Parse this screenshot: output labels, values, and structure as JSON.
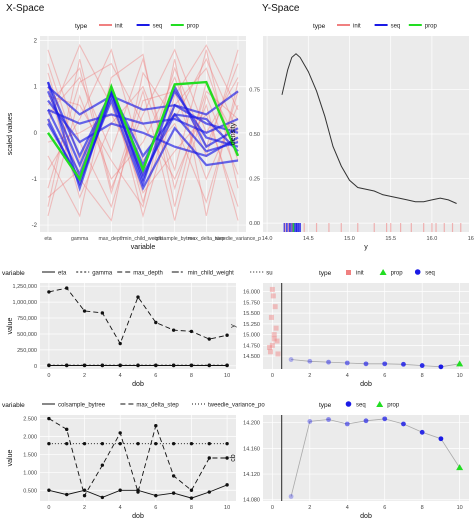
{
  "panel_titles": {
    "x_space": "X-Space",
    "y_space": "Y-Space"
  },
  "colors": {
    "panel_bg": "#ebebeb",
    "grid": "#ffffff",
    "init": "#f08080",
    "seq": "#1a1ae6",
    "prop": "#22dd22"
  },
  "chart_data": [
    {
      "id": "xspace",
      "type": "line",
      "legend_placement": "top",
      "legend": {
        "title": "type",
        "entries": [
          {
            "name": "init",
            "color": "#f08080"
          },
          {
            "name": "seq",
            "color": "#1a1ae6"
          },
          {
            "name": "prop",
            "color": "#22dd22"
          }
        ]
      },
      "xlabel": "variable",
      "ylabel": "scaled values",
      "categories": [
        "eta",
        "gamma",
        "max_depth",
        "min_child_weight",
        "colsample_bytree",
        "max_delta_step",
        "tweedie_variance_p"
      ],
      "tick_labels": [
        "eta",
        "gamma",
        "max_depth",
        "min_child_weight",
        "colsample_bytree",
        "max_delta_step",
        "tweedie_variance_p"
      ],
      "ylim": [
        -2.15,
        2.1
      ],
      "yticks": [
        -2,
        -1,
        0,
        1,
        2
      ],
      "series": [
        {
          "type": "init",
          "values": [
            -1.6,
            1.6,
            -1.2,
            0.4,
            1.8,
            0.0,
            1.2
          ]
        },
        {
          "type": "init",
          "values": [
            1.5,
            -0.6,
            0.9,
            -1.8,
            0.6,
            1.4,
            -0.6
          ]
        },
        {
          "type": "init",
          "values": [
            0.4,
            1.2,
            -0.4,
            1.6,
            -1.2,
            0.9,
            0.3
          ]
        },
        {
          "type": "init",
          "values": [
            -0.8,
            0.3,
            1.8,
            -0.6,
            0.2,
            -1.5,
            0.9
          ]
        },
        {
          "type": "init",
          "values": [
            1.0,
            -1.4,
            0.2,
            1.0,
            -0.8,
            1.8,
            -1.2
          ]
        },
        {
          "type": "init",
          "values": [
            -1.8,
            0.8,
            -1.0,
            -0.2,
            1.2,
            -0.5,
            1.8
          ]
        },
        {
          "type": "init",
          "values": [
            0.2,
            1.9,
            0.6,
            -1.3,
            -0.4,
            0.4,
            -1.6
          ]
        },
        {
          "type": "init",
          "values": [
            1.8,
            -0.2,
            -1.6,
            0.7,
            0.9,
            -1.0,
            0.6
          ]
        },
        {
          "type": "init",
          "values": [
            -0.5,
            -1.8,
            1.2,
            1.7,
            -1.6,
            1.1,
            -0.2
          ]
        },
        {
          "type": "init",
          "values": [
            0.8,
            0.6,
            -0.6,
            -1.6,
            1.6,
            -1.8,
            1.1
          ]
        },
        {
          "type": "init",
          "values": [
            -1.2,
            1.1,
            1.5,
            0.2,
            -1.0,
            0.6,
            -1.9
          ]
        },
        {
          "type": "init",
          "values": [
            1.3,
            -1.0,
            -1.9,
            1.3,
            0.3,
            1.6,
            0.0
          ]
        },
        {
          "type": "init",
          "values": [
            -0.2,
            0.0,
            0.4,
            -0.9,
            1.4,
            -0.3,
            1.5
          ]
        },
        {
          "type": "init",
          "values": [
            0.6,
            1.4,
            -1.3,
            0.9,
            -1.9,
            0.8,
            -0.9
          ]
        },
        {
          "type": "init",
          "values": [
            -1.4,
            -0.8,
            1.0,
            -1.5,
            0.8,
            1.9,
            0.5
          ]
        },
        {
          "type": "seq",
          "values": [
            1.1,
            -1.2,
            0.9,
            -1.1,
            1.0,
            -0.3,
            0.1
          ]
        },
        {
          "type": "seq",
          "values": [
            0.3,
            -1.1,
            0.8,
            -0.9,
            0.4,
            0.3,
            -0.4
          ]
        },
        {
          "type": "seq",
          "values": [
            0.5,
            -0.9,
            0.9,
            -1.0,
            0.6,
            0.2,
            0.0
          ]
        },
        {
          "type": "seq",
          "values": [
            1.0,
            0.4,
            0.8,
            0.5,
            0.6,
            0.4,
            0.9
          ]
        },
        {
          "type": "seq",
          "values": [
            0.7,
            -0.2,
            0.2,
            0.0,
            -0.3,
            -0.5,
            -0.1
          ]
        },
        {
          "type": "seq",
          "values": [
            0.5,
            0.2,
            0.4,
            0.2,
            0.3,
            0.0,
            0.3
          ]
        },
        {
          "type": "seq",
          "values": [
            0.2,
            -1.0,
            0.7,
            -1.2,
            0.1,
            -0.7,
            -0.6
          ]
        },
        {
          "type": "seq",
          "values": [
            0.9,
            -0.7,
            0.9,
            -0.5,
            0.4,
            -0.4,
            -0.2
          ]
        },
        {
          "type": "seq",
          "values": [
            1.1,
            -0.5,
            0.9,
            -0.7,
            0.9,
            -0.1,
            -0.3
          ]
        },
        {
          "type": "prop",
          "values": [
            0.0,
            -1.0,
            1.0,
            -0.8,
            1.05,
            1.1,
            -0.5
          ]
        }
      ]
    },
    {
      "id": "yspace",
      "type": "area",
      "legend_placement": "top",
      "legend": {
        "title": "type",
        "entries": [
          {
            "name": "init",
            "color": "#f08080"
          },
          {
            "name": "seq",
            "color": "#1a1ae6"
          },
          {
            "name": "prop",
            "color": "#22dd22"
          }
        ]
      },
      "xlabel": "y",
      "ylabel": "density",
      "xlim": [
        13.95,
        16.45
      ],
      "ylim": [
        -0.05,
        1.05
      ],
      "xticks": [
        14.0,
        14.5,
        15.0,
        15.5,
        16.0,
        16.5
      ],
      "xtick_labels": [
        "14.0",
        "14.5",
        "15.0",
        "15.5",
        "16.0",
        "16.5"
      ],
      "yticks": [
        0.0,
        0.25,
        0.5,
        0.75
      ],
      "ytick_labels": [
        "0.00",
        "0.25",
        "0.50",
        "0.75"
      ],
      "x": [
        14.18,
        14.25,
        14.3,
        14.35,
        14.4,
        14.5,
        14.6,
        14.7,
        14.8,
        14.9,
        15.0,
        15.1,
        15.2,
        15.3,
        15.4,
        15.5,
        15.6,
        15.7,
        15.8,
        15.9,
        16.0,
        16.1,
        16.2,
        16.3
      ],
      "y": [
        0.72,
        0.86,
        0.93,
        0.95,
        0.93,
        0.85,
        0.74,
        0.6,
        0.43,
        0.32,
        0.24,
        0.2,
        0.19,
        0.18,
        0.16,
        0.15,
        0.14,
        0.13,
        0.12,
        0.12,
        0.13,
        0.14,
        0.13,
        0.11
      ],
      "rug": [
        {
          "type": "seq",
          "values": [
            14.21,
            14.24,
            14.27,
            14.29,
            14.31,
            14.33,
            14.35,
            14.36,
            14.38,
            14.4
          ]
        },
        {
          "type": "prop",
          "values": [
            14.32
          ]
        },
        {
          "type": "init",
          "values": [
            14.22,
            14.26,
            14.3,
            14.45,
            14.6,
            14.75,
            14.9,
            15.1,
            15.3,
            15.45,
            15.5,
            15.62,
            15.75,
            15.9,
            16.0,
            16.05,
            16.15,
            16.25,
            16.35
          ]
        }
      ]
    },
    {
      "id": "yvars1",
      "type": "line",
      "legend_placement": "top",
      "legend": {
        "title": "variable",
        "entries": [
          {
            "name": "eta",
            "dash": ""
          },
          {
            "name": "gamma",
            "dash": "2,2"
          },
          {
            "name": "max_depth",
            "dash": "5,3"
          },
          {
            "name": "min_child_weight",
            "dash": "7,2,2,2"
          },
          {
            "name": "su",
            "dash": "1,2"
          }
        ]
      },
      "xlabel": "dob",
      "ylabel": "value",
      "xlim": [
        -0.5,
        10.5
      ],
      "ylim": [
        -50000,
        1300000
      ],
      "xticks": [
        0,
        2,
        4,
        6,
        8,
        10
      ],
      "yticks": [
        0,
        250000,
        500000,
        750000,
        1000000,
        1250000
      ],
      "ytick_labels": [
        "0",
        "250,000",
        "500,000",
        "750,000",
        "1,000,000",
        "1,250,000"
      ],
      "x": [
        0,
        1,
        2,
        3,
        4,
        5,
        6,
        7,
        8,
        9,
        10
      ],
      "series": [
        {
          "name": "max_depth",
          "dash": "5,3",
          "values": [
            1160000,
            1220000,
            860000,
            830000,
            350000,
            1080000,
            680000,
            560000,
            540000,
            420000,
            480000
          ]
        },
        {
          "name": "eta",
          "dash": "",
          "values": [
            5000,
            5000,
            5000,
            5000,
            5000,
            5000,
            5000,
            5000,
            5000,
            5000,
            5000
          ]
        },
        {
          "name": "gamma",
          "dash": "2,2",
          "values": [
            9000,
            9000,
            9000,
            9000,
            9000,
            9000,
            9000,
            9000,
            9000,
            9000,
            9000
          ]
        }
      ]
    },
    {
      "id": "ytrace1",
      "type": "scatter",
      "legend_placement": "top",
      "legend": {
        "title": "type",
        "entries": [
          {
            "name": "init",
            "shape": "square",
            "color": "#f08080"
          },
          {
            "name": "prop",
            "shape": "triangle",
            "color": "#22dd22"
          },
          {
            "name": "seq",
            "shape": "circle",
            "color": "#1a1ae6"
          }
        ]
      },
      "xlabel": "dob",
      "ylabel": "y",
      "xlim": [
        -0.5,
        10.5
      ],
      "ylim": [
        14.2,
        16.2
      ],
      "xticks": [
        0,
        2,
        4,
        6,
        8,
        10
      ],
      "yticks": [
        14.5,
        14.75,
        15.0,
        15.25,
        15.5,
        15.75,
        16.0
      ],
      "ytick_labels": [
        "14.500",
        "14.750",
        "15.000",
        "15.250",
        "15.500",
        "15.750",
        "16.000"
      ],
      "vline": 0.5,
      "init_points": {
        "x": [
          -0.1,
          0.0,
          0.1,
          0.2,
          -0.05,
          0.15,
          0.05,
          0.3,
          -0.15,
          0.25,
          0.1,
          0.0
        ],
        "y": [
          14.6,
          14.75,
          14.9,
          15.15,
          15.4,
          15.65,
          15.9,
          14.55,
          14.7,
          14.85,
          15.0,
          16.05
        ]
      },
      "seq_points": {
        "x": [
          1,
          2,
          3,
          4,
          5,
          6,
          7,
          8,
          9
        ],
        "y": [
          14.42,
          14.38,
          14.36,
          14.34,
          14.32,
          14.32,
          14.31,
          14.28,
          14.25
        ]
      },
      "prop_point": {
        "x": [
          10
        ],
        "y": [
          14.32
        ]
      }
    },
    {
      "id": "yvars2",
      "type": "line",
      "legend_placement": "top",
      "legend": {
        "title": "variable",
        "entries": [
          {
            "name": "colsample_bytree",
            "dash": ""
          },
          {
            "name": "max_delta_step",
            "dash": "5,3"
          },
          {
            "name": "tweedie_variance_po",
            "dash": "1,2"
          }
        ]
      },
      "xlabel": "dob",
      "ylabel": "value",
      "xlim": [
        -0.5,
        10.5
      ],
      "ylim": [
        0.2,
        2.6
      ],
      "xticks": [
        0,
        2,
        4,
        6,
        8,
        10
      ],
      "yticks": [
        0.5,
        1.0,
        1.5,
        2.0,
        2.5
      ],
      "ytick_labels": [
        "0.500",
        "1.000",
        "1.500",
        "2.000",
        "2.500"
      ],
      "x": [
        0,
        1,
        2,
        3,
        4,
        5,
        6,
        7,
        8,
        9,
        10
      ],
      "series": [
        {
          "name": "colsample_bytree",
          "dash": "",
          "values": [
            0.5,
            0.38,
            0.5,
            0.3,
            0.5,
            0.5,
            0.35,
            0.42,
            0.28,
            0.45,
            0.65
          ]
        },
        {
          "name": "max_delta_step",
          "dash": "5,3",
          "values": [
            2.5,
            2.2,
            0.35,
            1.2,
            2.1,
            0.45,
            2.3,
            0.9,
            0.5,
            1.4,
            1.4
          ]
        },
        {
          "name": "tweedie_variance_po",
          "dash": "1,2",
          "values": [
            1.8,
            1.8,
            1.8,
            1.8,
            1.8,
            1.8,
            1.8,
            1.8,
            1.8,
            1.8,
            1.8
          ]
        }
      ]
    },
    {
      "id": "ytrace2",
      "type": "scatter",
      "legend_placement": "top",
      "legend": {
        "title": "type",
        "entries": [
          {
            "name": "seq",
            "shape": "circle",
            "color": "#1a1ae6"
          },
          {
            "name": "prop",
            "shape": "triangle",
            "color": "#22dd22"
          }
        ]
      },
      "xlabel": "dob",
      "ylabel": "cb",
      "xlim": [
        -0.5,
        10.5
      ],
      "ylim": [
        14.078,
        14.212
      ],
      "xticks": [
        0,
        2,
        4,
        6,
        8,
        10
      ],
      "yticks": [
        14.08,
        14.12,
        14.16,
        14.2
      ],
      "ytick_labels": [
        "14.080",
        "14.120",
        "14.160",
        "14.200"
      ],
      "vline": 0.5,
      "seq_points": {
        "x": [
          1,
          2,
          3,
          4,
          5,
          6,
          7,
          8,
          9
        ],
        "y": [
          14.085,
          14.202,
          14.205,
          14.198,
          14.203,
          14.206,
          14.198,
          14.185,
          14.175
        ]
      },
      "prop_point": {
        "x": [
          10
        ],
        "y": [
          14.13
        ]
      }
    }
  ]
}
